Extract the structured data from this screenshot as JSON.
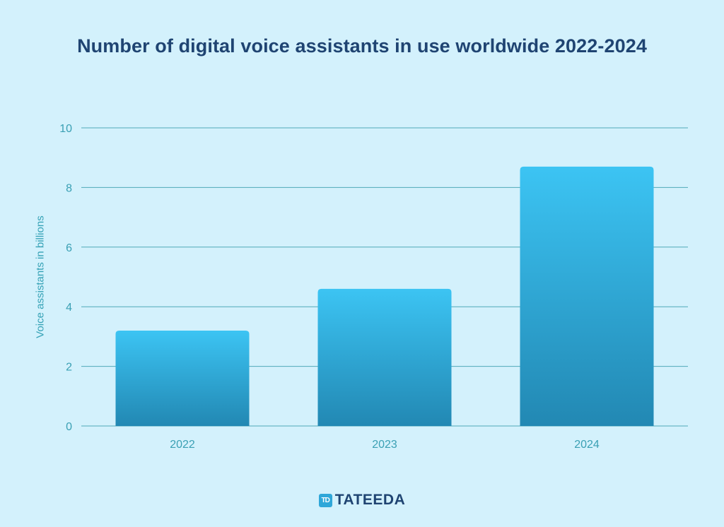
{
  "colors": {
    "background": "#d3f1fc",
    "title": "#1f4472",
    "axis_text": "#3aa0b4",
    "grid": "#4fa9b8",
    "bar_top": "#3cc4f3",
    "bar_bottom": "#2288b3"
  },
  "brand": {
    "mark": "TD",
    "name": "TATEEDA",
    "icon": "tateeda-logo-icon"
  },
  "chart_data": {
    "type": "bar",
    "title": "Number of digital voice assistants in use worldwide 2022-2024",
    "xlabel": "",
    "ylabel": "Voice assistants in billions",
    "categories": [
      "2022",
      "2023",
      "2024"
    ],
    "values": [
      3.2,
      4.6,
      8.7
    ],
    "ylim": [
      0,
      10
    ],
    "yticks": [
      "0",
      "2",
      "4",
      "6",
      "8",
      "10"
    ],
    "grid": true,
    "legend": "none"
  }
}
